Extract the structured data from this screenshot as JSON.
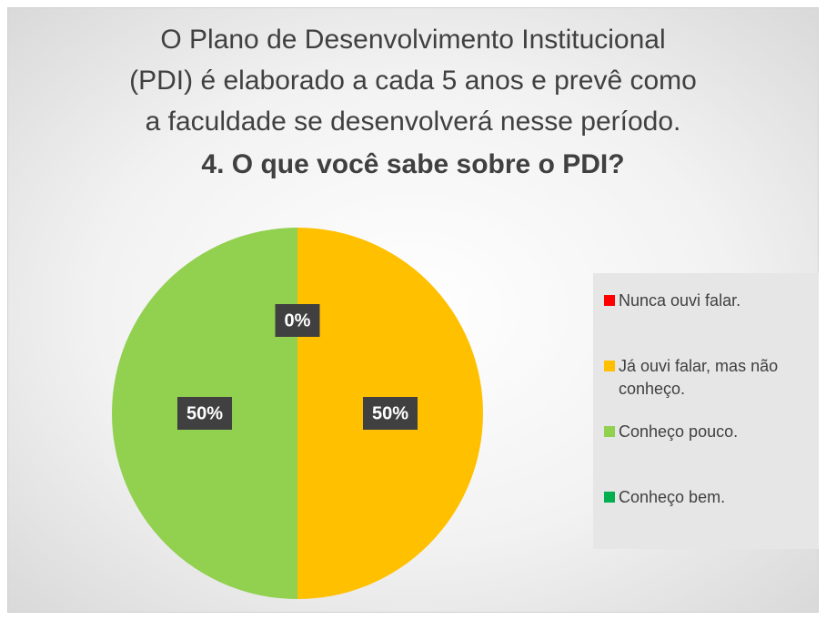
{
  "chart_data": {
    "type": "pie",
    "title": [
      "O Plano de Desenvolvimento Institucional",
      "(PDI) é elaborado a cada 5 anos e prevê como",
      "a faculdade se desenvolverá nesse período."
    ],
    "subtitle": "4. O que você sabe sobre o PDI?",
    "categories": [
      "Nunca ouvi falar.",
      "Já ouvi falar, mas não conheço.",
      "Conheço pouco.",
      "Conheço bem."
    ],
    "values": [
      0,
      50,
      50,
      0
    ],
    "value_labels": [
      "0%",
      "50%",
      "50%",
      "0%"
    ],
    "colors": [
      "#ff0000",
      "#ffc000",
      "#92d050",
      "#00b050"
    ],
    "legend": "right"
  }
}
